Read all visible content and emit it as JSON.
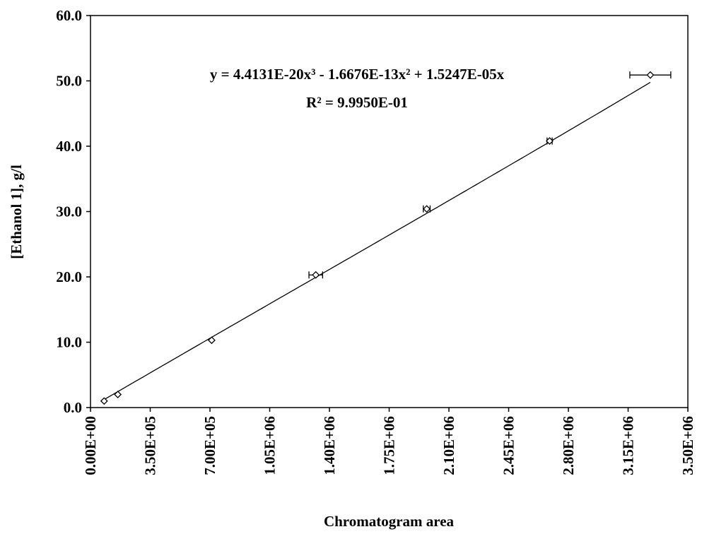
{
  "chart_data": {
    "type": "scatter",
    "x_label": "Chromatogram area",
    "y_label": "[Ethanol 1], g/l",
    "equation": "y = 4.4131E-20x³ - 1.6676E-13x² + 1.5247E-05x",
    "r_squared": "R² = 9.9950E-01",
    "trendline_coefficients": [
      4.4131e-20,
      -1.6676e-13,
      1.5247e-05
    ],
    "x": [
      80000,
      160000,
      710000,
      1320000,
      1970000,
      2690000,
      3280000
    ],
    "x_errors": [
      0,
      0,
      0,
      40000,
      20000,
      15000,
      120000
    ],
    "values": [
      1.0,
      2.0,
      10.3,
      20.3,
      30.4,
      40.8,
      50.9
    ],
    "color": "#000000",
    "xlim": [
      0,
      3500000
    ],
    "ylim": [
      0,
      60
    ],
    "xticks": [
      {
        "value": 0,
        "label": "0.00E+00"
      },
      {
        "value": 350000,
        "label": "3.50E+05"
      },
      {
        "value": 700000,
        "label": "7.00E+05"
      },
      {
        "value": 1050000,
        "label": "1.05E+06"
      },
      {
        "value": 1400000,
        "label": "1.40E+06"
      },
      {
        "value": 1750000,
        "label": "1.75E+06"
      },
      {
        "value": 2100000,
        "label": "2.10E+06"
      },
      {
        "value": 2450000,
        "label": "2.45E+06"
      },
      {
        "value": 2800000,
        "label": "2.80E+06"
      },
      {
        "value": 3150000,
        "label": "3.15E+06"
      },
      {
        "value": 3500000,
        "label": "3.50E+06"
      }
    ],
    "yticks": [
      {
        "value": 0,
        "label": "0.0"
      },
      {
        "value": 10,
        "label": "10.0"
      },
      {
        "value": 20,
        "label": "20.0"
      },
      {
        "value": 30,
        "label": "30.0"
      },
      {
        "value": 40,
        "label": "40.0"
      },
      {
        "value": 50,
        "label": "50.0"
      },
      {
        "value": 60,
        "label": "60.0"
      }
    ]
  }
}
